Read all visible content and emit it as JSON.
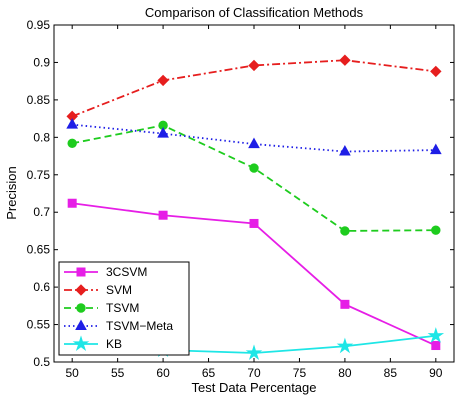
{
  "chart_data": {
    "type": "line",
    "title": "Comparison of Classification Methods",
    "xlabel": "Test Data Percentage",
    "ylabel": "Precision",
    "xlim": [
      48,
      92
    ],
    "ylim": [
      0.5,
      0.95
    ],
    "xticks": [
      50,
      55,
      60,
      65,
      70,
      75,
      80,
      85,
      90
    ],
    "yticks": [
      0.5,
      0.55,
      0.6,
      0.65,
      0.7,
      0.75,
      0.8,
      0.85,
      0.9,
      0.95
    ],
    "xtick_labels": [
      "50",
      "55",
      "60",
      "65",
      "70",
      "75",
      "80",
      "85",
      "90"
    ],
    "ytick_labels": [
      "0.5",
      "0.55",
      "0.6",
      "0.65",
      "0.7",
      "0.75",
      "0.8",
      "0.85",
      "0.9",
      "0.95"
    ],
    "legend_position": "bottom-left",
    "grid": false,
    "x": [
      50,
      60,
      70,
      80,
      90
    ],
    "series": [
      {
        "name": "3CSVM",
        "values": [
          0.712,
          0.696,
          0.685,
          0.577,
          0.522
        ],
        "color": "#e61ee6",
        "dash": "solid",
        "marker": "square"
      },
      {
        "name": "SVM",
        "values": [
          0.828,
          0.876,
          0.896,
          0.903,
          0.888
        ],
        "color": "#e61e1e",
        "dash": "dashdot",
        "marker": "diamond"
      },
      {
        "name": "TSVM",
        "values": [
          0.792,
          0.816,
          0.759,
          0.675,
          0.676
        ],
        "color": "#1ecc1e",
        "dash": "dashed",
        "marker": "circle"
      },
      {
        "name": "TSVM−Meta",
        "values": [
          0.817,
          0.805,
          0.791,
          0.781,
          0.783
        ],
        "color": "#1e1ee6",
        "dash": "dotted",
        "marker": "triangle"
      },
      {
        "name": "KB",
        "values": [
          0.523,
          0.516,
          0.512,
          0.521,
          0.535
        ],
        "color": "#1ee6e6",
        "dash": "solid",
        "marker": "star"
      }
    ]
  }
}
